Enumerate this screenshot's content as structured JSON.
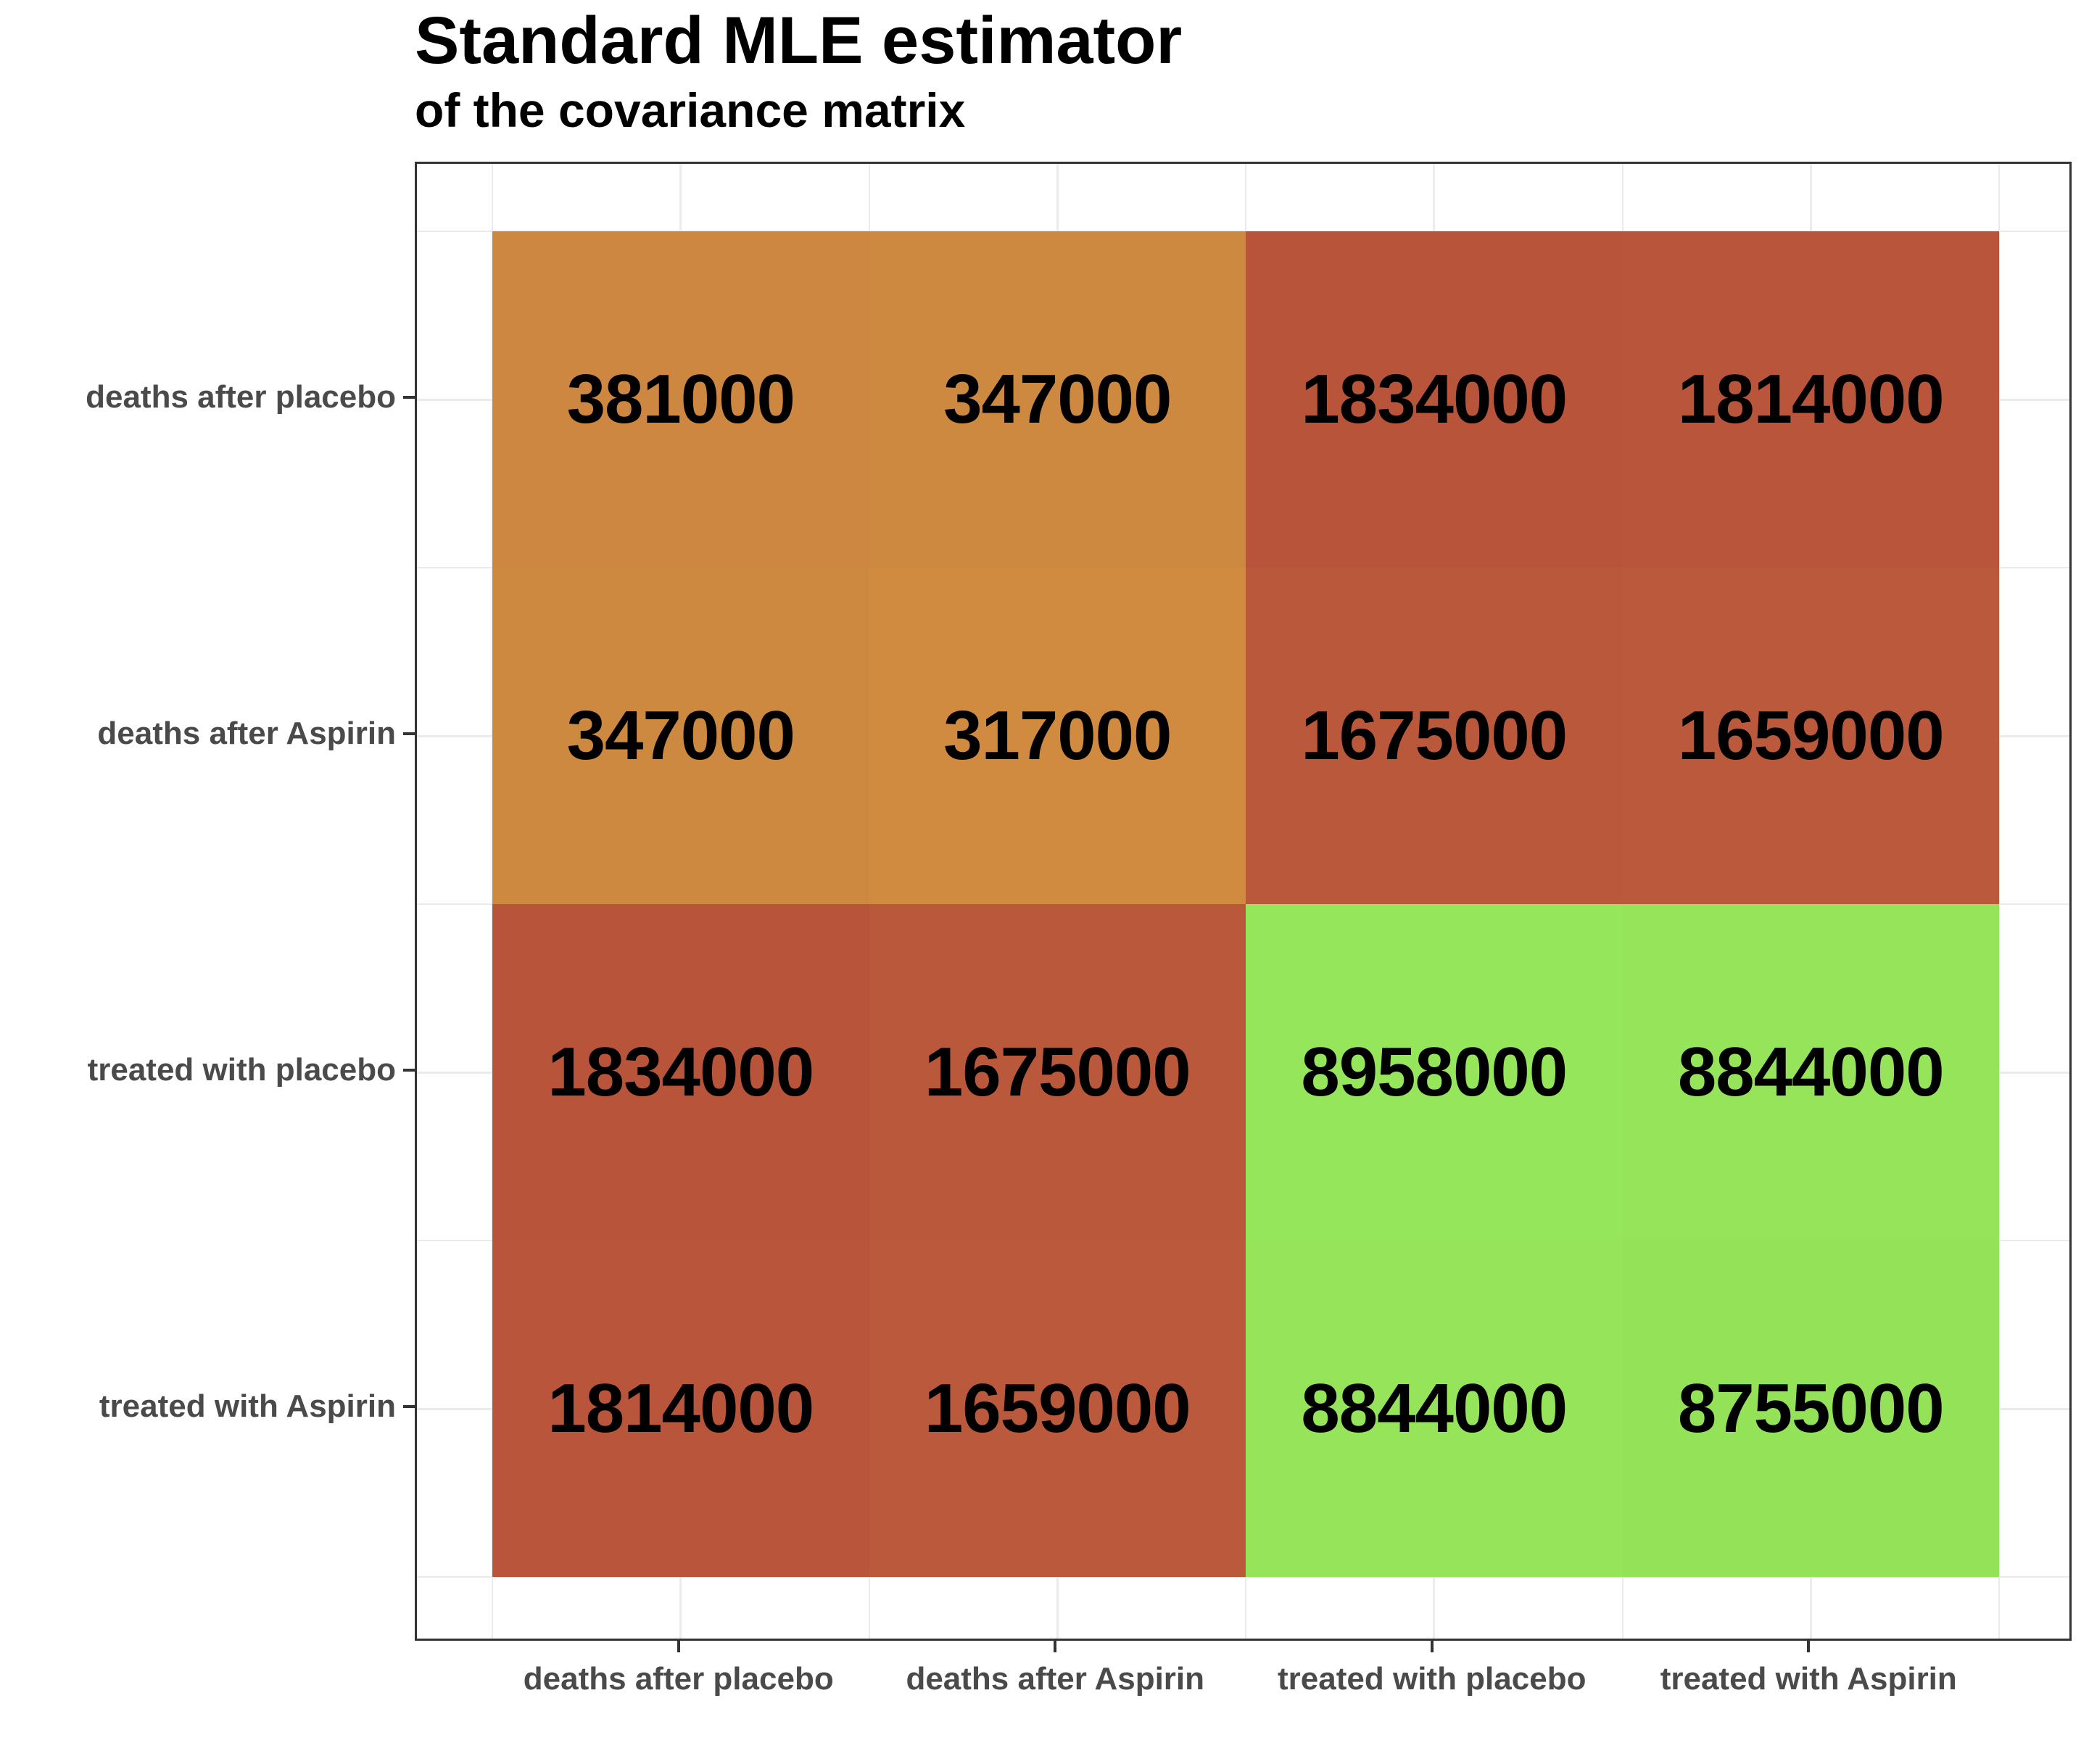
{
  "title": "Standard MLE estimator",
  "subtitle": "of the covariance matrix",
  "chart_data": {
    "type": "heatmap",
    "x_categories": [
      "deaths after placebo",
      "deaths after Aspirin",
      "treated with placebo",
      "treated with Aspirin"
    ],
    "y_categories": [
      "deaths after placebo",
      "deaths after Aspirin",
      "treated with placebo",
      "treated with Aspirin"
    ],
    "values": [
      [
        381000,
        347000,
        1834000,
        1814000
      ],
      [
        347000,
        317000,
        1675000,
        1659000
      ],
      [
        1834000,
        1675000,
        8958000,
        8844000
      ],
      [
        1814000,
        1659000,
        8844000,
        8755000
      ]
    ],
    "cell_colors": [
      [
        "#CD8740",
        "#CE8940",
        "#B85439",
        "#B8553A"
      ],
      [
        "#CE8940",
        "#D08B40",
        "#BA583B",
        "#BB593C"
      ],
      [
        "#B85439",
        "#BA583B",
        "#96E65B",
        "#95E45A"
      ],
      [
        "#B8553A",
        "#BB593C",
        "#95E45A",
        "#93E258"
      ]
    ],
    "value_label_color": "#000000",
    "axis_text_color": "#4A4A4A",
    "panel_border_color": "#333333",
    "gridline_color": "#EBEBEB",
    "tick_color": "#333333",
    "legend_position": "none",
    "grid": true
  }
}
